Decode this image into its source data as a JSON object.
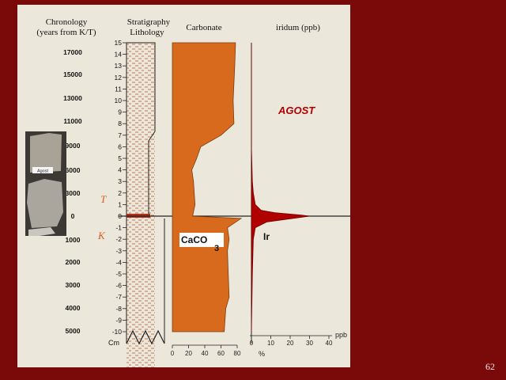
{
  "headers": {
    "chronology_line1": "Chronology",
    "chronology_line2": "(years from K/T)",
    "stratigraphy_line1": "Stratigraphy",
    "stratigraphy_line2": "Lithology",
    "carbonate": "Carbonate",
    "iridium": "iridum (ppb)"
  },
  "site_label": "AGOST",
  "photo_label": "Agost",
  "boundary_labels": {
    "above": "T",
    "below": "K"
  },
  "carbonate_label": {
    "main": "CaCO",
    "sub": "3"
  },
  "iridium_label": "Ir",
  "depth_unit": "Cm",
  "carbonate_unit": "%",
  "iridium_unit": "ppb",
  "chronology_ticks": [
    "17000",
    "15000",
    "13000",
    "11000",
    "9000",
    "6000",
    "3000",
    "0",
    "1000",
    "2000",
    "3000",
    "4000",
    "5000"
  ],
  "depth_ticks": [
    "15",
    "14",
    "13",
    "12",
    "11",
    "10",
    "9",
    "8",
    "7",
    "6",
    "5",
    "4",
    "3",
    "2",
    "1",
    "0",
    "-1",
    "-2",
    "-3",
    "-4",
    "-5",
    "-6",
    "-7",
    "-8",
    "-9",
    "-10"
  ],
  "carbonate_axis_ticks": [
    "0",
    "20",
    "40",
    "60",
    "80"
  ],
  "iridium_axis_ticks": [
    "0",
    "10",
    "20",
    "30",
    "40"
  ],
  "slide_number": "62",
  "colors": {
    "background": "#7a0a0a",
    "panel": "#ece7db",
    "carbonate_fill": "#d86a1e",
    "iridium_fill": "#b00000",
    "site_label": "#b00000",
    "boundary_label": "#d06020"
  },
  "chart_data": [
    {
      "type": "area",
      "ylabel": "Cm",
      "xlabel": "%",
      "xlim": [
        0,
        80
      ],
      "ylim": [
        -10,
        15
      ],
      "series": [
        {
          "name": "CaCO3",
          "x_depth_pairs": [
            [
              78,
              15
            ],
            [
              77,
              13
            ],
            [
              75,
              10
            ],
            [
              76,
              8
            ],
            [
              60,
              7
            ],
            [
              35,
              6
            ],
            [
              30,
              5
            ],
            [
              24,
              4
            ],
            [
              26,
              3
            ],
            [
              28,
              1
            ],
            [
              25,
              0
            ],
            [
              85,
              -0.2
            ],
            [
              68,
              -1
            ],
            [
              70,
              -2
            ],
            [
              68,
              -3
            ],
            [
              69,
              -5
            ],
            [
              70,
              -7
            ],
            [
              66,
              -8
            ],
            [
              64,
              -10
            ]
          ]
        }
      ]
    },
    {
      "type": "area",
      "xlabel": "ppb",
      "xlim": [
        0,
        40
      ],
      "ylim": [
        -10,
        15
      ],
      "series": [
        {
          "name": "Ir",
          "x_depth_pairs": [
            [
              0,
              15
            ],
            [
              0,
              6
            ],
            [
              0.5,
              3
            ],
            [
              1,
              2
            ],
            [
              2,
              1
            ],
            [
              5,
              0.5
            ],
            [
              12,
              0.3
            ],
            [
              25,
              0.1
            ],
            [
              30,
              0
            ],
            [
              8,
              -0.5
            ],
            [
              2,
              -1
            ],
            [
              1,
              -2
            ],
            [
              0.5,
              -5
            ],
            [
              0,
              -10
            ]
          ]
        }
      ]
    }
  ]
}
